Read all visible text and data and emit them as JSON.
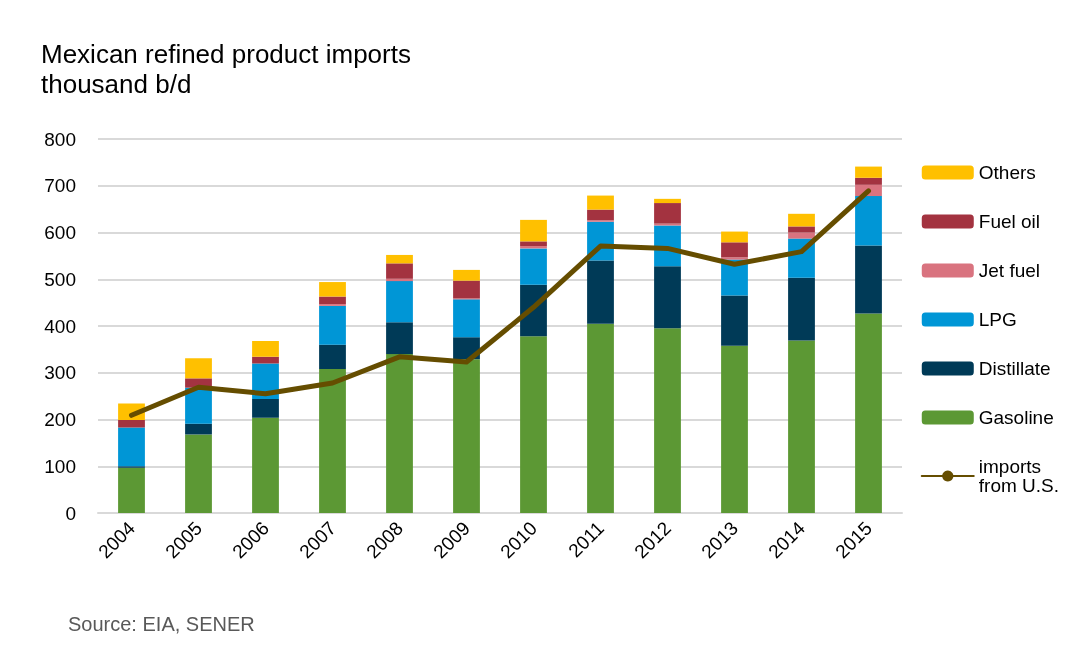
{
  "chart_data": {
    "type": "bar",
    "stacked": true,
    "title": "Mexican refined product imports",
    "subtitle": "thousand b/d",
    "categories": [
      "2004",
      "2005",
      "2006",
      "2007",
      "2008",
      "2009",
      "2010",
      "2011",
      "2012",
      "2013",
      "2014",
      "2015"
    ],
    "series": [
      {
        "name": "Gasoline",
        "color": "#5c9834",
        "values": [
          97,
          168,
          204,
          308,
          340,
          329,
          378,
          405,
          395,
          358,
          369,
          427
        ]
      },
      {
        "name": "Distillate",
        "color": "#003a57",
        "values": [
          3,
          23,
          40,
          52,
          68,
          47,
          110,
          135,
          133,
          107,
          134,
          145
        ]
      },
      {
        "name": "LPG",
        "color": "#0096d6",
        "values": [
          83,
          77,
          76,
          83,
          88,
          81,
          78,
          83,
          87,
          77,
          84,
          106
        ]
      },
      {
        "name": "Jet fuel",
        "color": "#d9737f",
        "values": [
          null,
          null,
          null,
          4,
          5,
          2,
          5,
          3,
          4,
          5,
          13,
          24
        ]
      },
      {
        "name": "Fuel oil",
        "color": "#a33340",
        "values": [
          16,
          20,
          14,
          16,
          33,
          38,
          10,
          23,
          44,
          32,
          13,
          15
        ]
      },
      {
        "name": "Others",
        "color": "#ffc000",
        "values": [
          35,
          43,
          34,
          31,
          18,
          23,
          46,
          30,
          9,
          23,
          27,
          24
        ]
      },
      {
        "name": "imports from U.S.",
        "type": "line",
        "color": "#654d00",
        "values": [
          209,
          269,
          255,
          278,
          334,
          323,
          440,
          571,
          566,
          532,
          559,
          689
        ]
      }
    ],
    "ylim": [
      0,
      800
    ],
    "yticks": [
      0,
      100,
      200,
      300,
      400,
      500,
      600,
      700,
      800
    ],
    "grid": "y",
    "legend": "right",
    "marker": "none",
    "line_style": "solid",
    "annotations": [
      "Source: EIA, SENER"
    ]
  }
}
